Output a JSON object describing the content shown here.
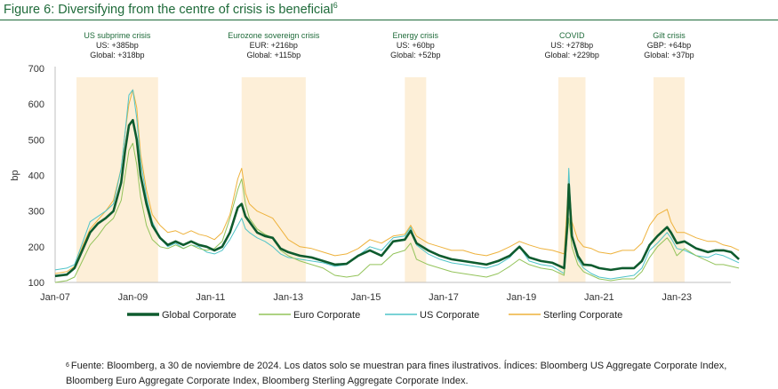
{
  "figure": {
    "title": "Figure 6: Diversifying from the centre of crisis is beneficial",
    "title_sup": "6"
  },
  "footnote": {
    "marker": "6",
    "text": "Fuente: Bloomberg, a 30 de noviembre de 2024. Los datos solo se muestran para fines ilustrativos. Índices: Bloomberg US Aggregate Corporate Index, Bloomberg Euro Aggregate Corporate Index, Bloomberg Sterling Aggregate Corporate Index."
  },
  "colors": {
    "title": "#1f6b3a",
    "band": "#fdefd8",
    "global": "#0e5b2e",
    "euro": "#93c35a",
    "us": "#4fc4c8",
    "sterling": "#eeb23c",
    "annotation_title": "#1f6b3a"
  },
  "chart_data": {
    "type": "line",
    "title": "Figure 6: Diversifying from the centre of crisis is beneficial",
    "xlabel": "",
    "ylabel": "bp",
    "ylim": [
      100,
      700
    ],
    "yticks": [
      100,
      200,
      300,
      400,
      500,
      600,
      700
    ],
    "xlim": [
      2007.0,
      2024.6
    ],
    "xticks": [
      {
        "x": 2007,
        "label": "Jan-07"
      },
      {
        "x": 2009,
        "label": "Jan-09"
      },
      {
        "x": 2011,
        "label": "Jan-11"
      },
      {
        "x": 2013,
        "label": "Jan-13"
      },
      {
        "x": 2015,
        "label": "Jan-15"
      },
      {
        "x": 2017,
        "label": "Jan-17"
      },
      {
        "x": 2019,
        "label": "Jan-19"
      },
      {
        "x": 2021,
        "label": "Jan-21"
      },
      {
        "x": 2023,
        "label": "Jan-23"
      }
    ],
    "grid": false,
    "legend": {
      "placement": "bottom"
    },
    "crisis_bands": [
      {
        "name": "US subprime crisis",
        "start": 2007.55,
        "end": 2009.65,
        "lines": [
          "US: +385bp",
          "Global: +318bp"
        ]
      },
      {
        "name": "Eurozone sovereign crisis",
        "start": 2011.8,
        "end": 2013.45,
        "lines": [
          "EUR: +216bp",
          "Global: +115bp"
        ]
      },
      {
        "name": "Energy crisis",
        "start": 2016.0,
        "end": 2016.55,
        "lines": [
          "US: +60bp",
          "Global: +52bp"
        ]
      },
      {
        "name": "COVID",
        "start": 2019.95,
        "end": 2020.65,
        "lines": [
          "US: +278bp",
          "Global: +229bp"
        ]
      },
      {
        "name": "Gilt crisis",
        "start": 2022.4,
        "end": 2023.2,
        "lines": [
          "GBP: +64bp",
          "Global: +37bp"
        ]
      }
    ],
    "x": [
      2007.0,
      2007.3,
      2007.5,
      2007.7,
      2007.9,
      2008.1,
      2008.3,
      2008.5,
      2008.7,
      2008.8,
      2008.9,
      2009.0,
      2009.1,
      2009.2,
      2009.35,
      2009.5,
      2009.7,
      2009.9,
      2010.1,
      2010.3,
      2010.5,
      2010.7,
      2010.9,
      2011.1,
      2011.3,
      2011.5,
      2011.7,
      2011.8,
      2011.9,
      2012.0,
      2012.2,
      2012.4,
      2012.6,
      2012.8,
      2013.0,
      2013.3,
      2013.6,
      2013.9,
      2014.2,
      2014.5,
      2014.8,
      2015.1,
      2015.4,
      2015.7,
      2016.0,
      2016.15,
      2016.3,
      2016.6,
      2016.9,
      2017.2,
      2017.5,
      2017.8,
      2018.1,
      2018.4,
      2018.7,
      2018.95,
      2019.2,
      2019.5,
      2019.8,
      2020.1,
      2020.18,
      2020.22,
      2020.3,
      2020.45,
      2020.6,
      2020.8,
      2021.0,
      2021.3,
      2021.6,
      2021.9,
      2022.1,
      2022.3,
      2022.5,
      2022.75,
      2022.85,
      2023.0,
      2023.2,
      2023.5,
      2023.8,
      2024.0,
      2024.2,
      2024.4,
      2024.6
    ],
    "series": [
      {
        "name": "Global Corporate",
        "values": [
          118,
          122,
          140,
          190,
          240,
          265,
          280,
          300,
          380,
          470,
          540,
          555,
          500,
          400,
          320,
          260,
          225,
          205,
          215,
          205,
          215,
          205,
          200,
          190,
          200,
          240,
          310,
          320,
          285,
          270,
          240,
          230,
          225,
          195,
          185,
          175,
          170,
          160,
          150,
          152,
          175,
          190,
          175,
          215,
          220,
          245,
          210,
          190,
          175,
          165,
          160,
          155,
          150,
          160,
          175,
          200,
          170,
          160,
          155,
          140,
          260,
          375,
          230,
          175,
          150,
          148,
          140,
          135,
          140,
          140,
          160,
          205,
          230,
          255,
          240,
          210,
          215,
          195,
          185,
          190,
          190,
          185,
          165
        ]
      },
      {
        "name": "Euro Corporate",
        "values": [
          100,
          105,
          115,
          160,
          205,
          230,
          260,
          280,
          330,
          400,
          470,
          490,
          430,
          340,
          260,
          220,
          200,
          195,
          205,
          195,
          205,
          195,
          190,
          195,
          215,
          280,
          360,
          390,
          320,
          280,
          250,
          235,
          225,
          190,
          175,
          160,
          150,
          140,
          120,
          115,
          120,
          150,
          150,
          180,
          190,
          210,
          165,
          150,
          140,
          130,
          125,
          120,
          115,
          125,
          145,
          165,
          150,
          140,
          135,
          120,
          230,
          280,
          200,
          150,
          130,
          120,
          110,
          105,
          110,
          110,
          130,
          170,
          200,
          225,
          210,
          175,
          195,
          175,
          160,
          150,
          150,
          145,
          140
        ]
      },
      {
        "name": "US Corporate",
        "values": [
          135,
          140,
          150,
          210,
          270,
          285,
          300,
          320,
          420,
          520,
          625,
          640,
          560,
          440,
          340,
          270,
          225,
          200,
          210,
          195,
          205,
          200,
          185,
          180,
          190,
          220,
          260,
          280,
          250,
          240,
          225,
          215,
          200,
          180,
          170,
          165,
          160,
          155,
          145,
          150,
          175,
          200,
          190,
          225,
          230,
          255,
          205,
          180,
          165,
          155,
          150,
          145,
          140,
          150,
          170,
          200,
          160,
          150,
          145,
          125,
          290,
          420,
          230,
          165,
          140,
          125,
          115,
          110,
          115,
          120,
          140,
          190,
          210,
          240,
          225,
          195,
          190,
          175,
          170,
          180,
          175,
          165,
          155
        ]
      },
      {
        "name": "Sterling Corporate",
        "values": [
          125,
          130,
          145,
          200,
          250,
          275,
          300,
          330,
          420,
          520,
          600,
          640,
          590,
          460,
          360,
          290,
          260,
          240,
          245,
          235,
          245,
          235,
          230,
          220,
          240,
          290,
          390,
          420,
          350,
          320,
          300,
          290,
          280,
          250,
          220,
          200,
          195,
          185,
          175,
          180,
          195,
          220,
          210,
          230,
          235,
          260,
          230,
          210,
          200,
          190,
          190,
          180,
          175,
          185,
          200,
          215,
          205,
          195,
          190,
          180,
          320,
          385,
          270,
          220,
          200,
          195,
          185,
          180,
          190,
          190,
          210,
          260,
          290,
          305,
          270,
          240,
          240,
          225,
          215,
          215,
          205,
          200,
          190
        ]
      }
    ]
  }
}
